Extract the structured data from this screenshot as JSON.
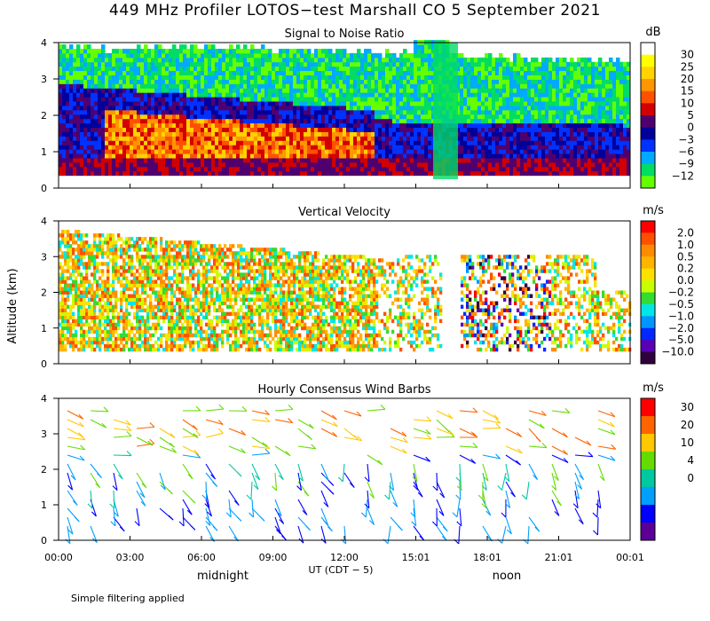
{
  "title": "449 MHz Profiler LOTOS−test Marshall CO  5 September 2021",
  "footnote": "Simple filtering applied",
  "chart_data": [
    {
      "type": "heatmap",
      "title": "Signal to Noise Ratio",
      "unit": "dB",
      "ylabel": "Altitude (km)",
      "xlabel": "UT  (CDT − 5)",
      "xticks": [
        "00:00",
        "03:00",
        "06:00",
        "09:00",
        "12:00",
        "15:01",
        "18:01",
        "21:01",
        "00:01"
      ],
      "yticks": [
        "0",
        "1",
        "2",
        "3",
        "4"
      ],
      "ylim": [
        0,
        4
      ],
      "colorbar": {
        "labels": [
          "30",
          "25",
          "20",
          "15",
          "10",
          "5",
          "0",
          "−3",
          "−6",
          "−9",
          "−12"
        ],
        "colors": [
          "#ffffff",
          "#ffff00",
          "#ffd200",
          "#ff9600",
          "#ff5000",
          "#d20000",
          "#50006e",
          "#00009b",
          "#0032ff",
          "#00aaff",
          "#00dc64",
          "#64ff00"
        ]
      }
    },
    {
      "type": "heatmap",
      "title": "Vertical Velocity",
      "unit": "m/s",
      "ylim": [
        0,
        4
      ],
      "yticks": [
        "0",
        "1",
        "2",
        "3",
        "4"
      ],
      "colorbar": {
        "labels": [
          "2.0",
          "1.0",
          "0.5",
          "0.2",
          "0.0",
          "−0.2",
          "−0.5",
          "−1.0",
          "−2.0",
          "−5.0",
          "−10.0"
        ],
        "colors": [
          "#ff0000",
          "#ff5000",
          "#ff8c00",
          "#ffb400",
          "#ffe100",
          "#c8ff00",
          "#32dc32",
          "#00e6e6",
          "#0096ff",
          "#0028ff",
          "#5a00b4",
          "#30003c"
        ]
      }
    },
    {
      "type": "scatter",
      "title": "Hourly Consensus Wind Barbs",
      "unit": "m/s",
      "ylim": [
        0,
        4
      ],
      "yticks": [
        "0",
        "1",
        "2",
        "3",
        "4"
      ],
      "colorbar": {
        "labels": [
          "30",
          "20",
          "10",
          "4",
          "0"
        ],
        "colors": [
          "#ff0000",
          "#ff6400",
          "#ffc800",
          "#64dc00",
          "#00c8a0",
          "#00a0ff",
          "#0000ff",
          "#5a0096"
        ]
      }
    }
  ],
  "annotations": {
    "midnight": "midnight",
    "noon": "noon"
  }
}
